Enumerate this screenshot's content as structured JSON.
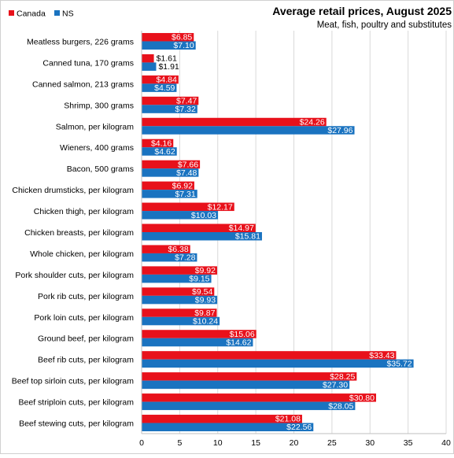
{
  "colors": {
    "Canada": "#e8111b",
    "NS": "#1a73c0",
    "grid": "#d9d9d9",
    "axis": "#bfbfbf"
  },
  "chart_data": {
    "type": "bar",
    "orientation": "horizontal",
    "title": "Average retail prices, August 2025",
    "subtitle": "Meat,  fish, poultry and substitutes",
    "xlim": [
      0,
      40
    ],
    "xticks": [
      0,
      5,
      10,
      15,
      20,
      25,
      30,
      35,
      40
    ],
    "grid": true,
    "legend_position": "top-left",
    "categories": [
      "Meatless burgers, 226 grams",
      "Canned tuna, 170 grams",
      "Canned salmon, 213 grams",
      "Shrimp, 300 grams",
      "Salmon, per kilogram",
      "Wieners, 400 grams",
      "Bacon, 500 grams",
      "Chicken drumsticks, per kilogram",
      "Chicken thigh, per kilogram",
      "Chicken breasts, per kilogram",
      "Whole chicken, per kilogram",
      "Pork shoulder cuts, per kilogram",
      "Pork rib cuts, per kilogram",
      "Pork loin cuts, per kilogram",
      "Ground beef, per kilogram",
      "Beef rib cuts, per kilogram",
      "Beef top sirloin cuts, per kilogram",
      "Beef striploin cuts, per kilogram",
      "Beef stewing cuts, per kilogram"
    ],
    "series": [
      {
        "name": "Canada",
        "values": [
          6.85,
          1.61,
          4.84,
          7.47,
          24.26,
          4.16,
          7.66,
          6.92,
          12.17,
          14.97,
          6.38,
          9.92,
          9.54,
          9.87,
          15.06,
          33.43,
          28.25,
          30.8,
          21.08
        ],
        "labels": [
          "$6.85",
          "$1.61",
          "$4.84",
          "$7.47",
          "$24.26",
          "$4.16",
          "$7.66",
          "$6.92",
          "$12.17",
          "$14.97",
          "$6.38",
          "$9.92",
          "$9.54",
          "$9.87",
          "$15.06",
          "$33.43",
          "$28.25",
          "$30.80",
          "$21.08"
        ]
      },
      {
        "name": "NS",
        "values": [
          7.1,
          1.91,
          4.59,
          7.32,
          27.96,
          4.62,
          7.48,
          7.31,
          10.03,
          15.81,
          7.28,
          9.15,
          9.93,
          10.24,
          14.62,
          35.72,
          27.3,
          28.05,
          22.56
        ],
        "labels": [
          "$7.10",
          "$1.91",
          "$4.59",
          "$7.32",
          "$27.96",
          "$4.62",
          "$7.48",
          "$7.31",
          "$10.03",
          "$15.81",
          "$7.28",
          "$9.15",
          "$9.93",
          "$10.24",
          "$14.62",
          "$35.72",
          "$27.30",
          "$28.05",
          "$22.56"
        ]
      }
    ]
  }
}
